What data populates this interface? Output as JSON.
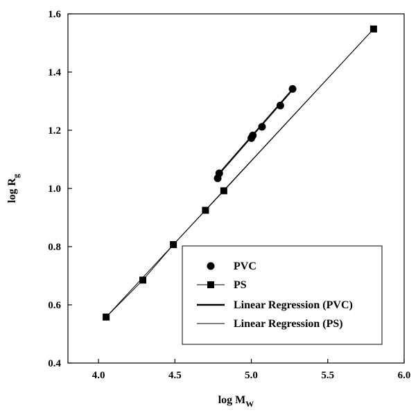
{
  "chart_data": {
    "type": "scatter",
    "xlabel": "log M",
    "xlabel_sub": "W",
    "ylabel": "log R",
    "ylabel_sub": "g",
    "xlim": [
      3.8,
      6.0
    ],
    "ylim": [
      0.4,
      1.6
    ],
    "x_ticks": [
      4.0,
      4.5,
      5.0,
      5.5,
      6.0
    ],
    "x_tick_labels": [
      "4.0",
      "4.5",
      "5.0",
      "5.5",
      "6.0"
    ],
    "y_ticks": [
      0.4,
      0.6,
      0.8,
      1.0,
      1.2,
      1.4,
      1.6
    ],
    "y_tick_labels": [
      "0.4",
      "0.6",
      "0.8",
      "1.0",
      "1.2",
      "1.4",
      "1.6"
    ],
    "grid": false,
    "legend_position": "bottom-right",
    "series": [
      {
        "name": "PVC",
        "marker": "circle",
        "line": false,
        "points": [
          [
            4.78,
            1.035
          ],
          [
            4.79,
            1.052
          ],
          [
            5.0,
            1.173
          ],
          [
            5.01,
            1.182
          ],
          [
            5.07,
            1.212
          ],
          [
            5.19,
            1.285
          ],
          [
            5.27,
            1.342
          ]
        ]
      },
      {
        "name": "PS",
        "marker": "square",
        "line": true,
        "points": [
          [
            4.05,
            0.558
          ],
          [
            4.29,
            0.685
          ],
          [
            4.49,
            0.807
          ],
          [
            4.7,
            0.925
          ],
          [
            4.82,
            0.992
          ],
          [
            5.8,
            1.548
          ]
        ]
      },
      {
        "name": "Linear Regression (PVC)",
        "type": "line",
        "stroke_width": "thick",
        "points": [
          [
            4.78,
            1.045
          ],
          [
            5.27,
            1.34
          ]
        ]
      },
      {
        "name": "Linear Regression (PS)",
        "type": "line",
        "stroke_width": "thin",
        "points": [
          [
            4.05,
            0.558
          ],
          [
            5.8,
            1.548
          ]
        ]
      }
    ],
    "colors": {
      "marks": "#000000",
      "background": "#ffffff"
    }
  }
}
